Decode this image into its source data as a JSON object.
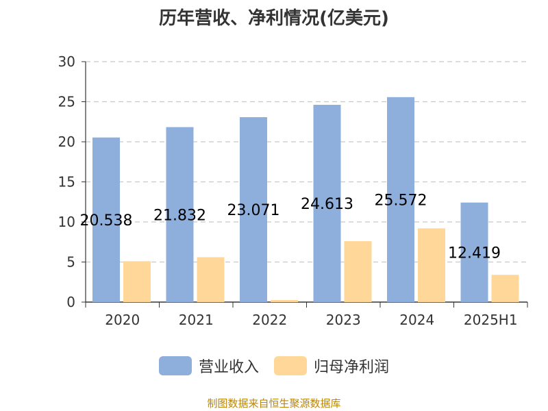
{
  "chart_data": {
    "type": "bar",
    "title": "历年营收、净利情况(亿美元)",
    "categories": [
      "2020",
      "2021",
      "2022",
      "2023",
      "2024",
      "2025H1"
    ],
    "series": [
      {
        "name": "营业收入",
        "color": "#8eaedb",
        "values": [
          20.538,
          21.832,
          23.071,
          24.613,
          25.572,
          12.419
        ],
        "labels": [
          "20.538",
          "21.832",
          "23.071",
          "24.613",
          "25.572",
          "12.419"
        ]
      },
      {
        "name": "归母净利润",
        "color": "#ffd899",
        "values": [
          5.1,
          5.6,
          0.25,
          7.6,
          9.2,
          3.4
        ]
      }
    ],
    "ylim": [
      0,
      30
    ],
    "yticks": [
      "0",
      "5",
      "10",
      "15",
      "20",
      "25",
      "30"
    ],
    "grid": true,
    "legend_position": "bottom"
  },
  "footer": {
    "source": "制图数据来自恒生聚源数据库"
  }
}
